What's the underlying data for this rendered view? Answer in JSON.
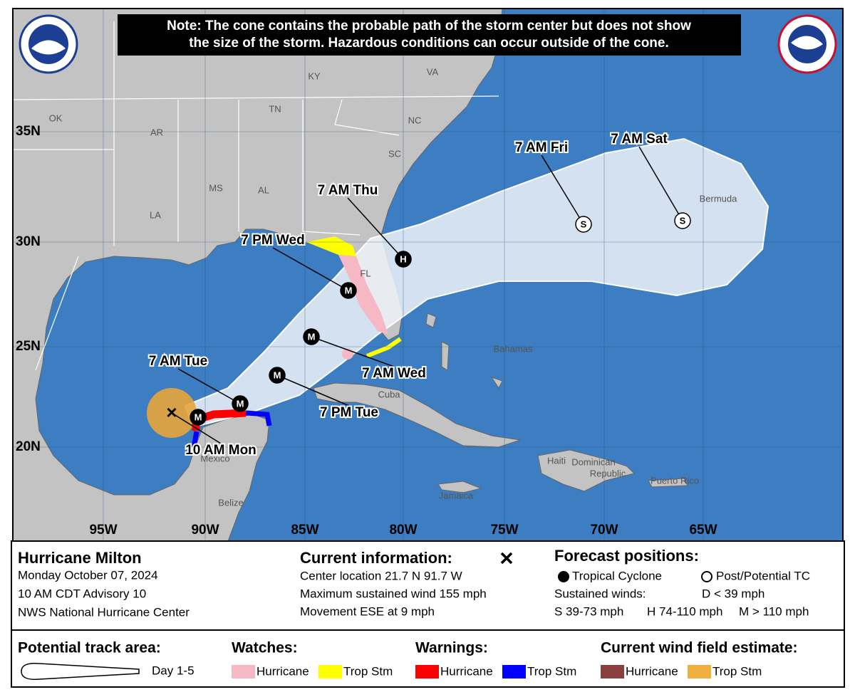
{
  "header": {
    "note": [
      "Note: The cone contains the probable path of the storm center but does not show",
      "the size of the storm. Hazardous conditions can occur outside of the cone."
    ]
  },
  "map": {
    "latitude_labels": [
      "35N",
      "30N",
      "25N",
      "20N"
    ],
    "longitude_labels": [
      "95W",
      "90W",
      "85W",
      "80W",
      "75W",
      "70W",
      "65W"
    ],
    "place_labels": [
      "OK",
      "AR",
      "TN",
      "KY",
      "VA",
      "NC",
      "SC",
      "MS",
      "AL",
      "LA",
      "FL",
      "Bermuda",
      "Bahamas",
      "Cuba",
      "Haiti",
      "Dominican",
      "Republic",
      "Puerto Rico",
      "Jamaica",
      "Mexico",
      "Belize"
    ],
    "forecast_points": [
      {
        "symbol": "×",
        "label": "10 AM Mon"
      },
      {
        "symbol": "M"
      },
      {
        "symbol": "M",
        "label": "7 AM Tue"
      },
      {
        "symbol": "M",
        "label": "7 PM Tue"
      },
      {
        "symbol": "M",
        "label": "7 AM Wed"
      },
      {
        "symbol": "M",
        "label": "7 PM Wed"
      },
      {
        "symbol": "H",
        "label": "7 AM Thu"
      },
      {
        "symbol": "S",
        "label": "7 AM Fri"
      },
      {
        "symbol": "S",
        "label": "7 AM Sat"
      }
    ]
  },
  "info": {
    "storm": {
      "title": "Hurricane Milton",
      "lines": [
        "Monday October 07, 2024",
        "10 AM CDT Advisory 10",
        "NWS National Hurricane Center"
      ]
    },
    "current": {
      "title": "Current information:",
      "lines": [
        "Center location 21.7 N 91.7 W",
        "Maximum sustained wind 155 mph",
        "Movement ESE at 9 mph"
      ]
    },
    "forecast": {
      "title": "Forecast positions:",
      "tropical_cyclone": "Tropical Cyclone",
      "post_potential": "Post/Potential TC",
      "sustained": "Sustained winds:",
      "d": "D < 39 mph",
      "s": "S 39-73 mph",
      "h": "H 74-110 mph",
      "m": "M > 110 mph"
    }
  },
  "legend": {
    "track_area": {
      "title": "Potential track area:",
      "label": "Day 1-5"
    },
    "watches": {
      "title": "Watches:",
      "items": [
        {
          "label": "Hurricane",
          "color": "#f7b8c6"
        },
        {
          "label": "Trop Stm",
          "color": "#ffff00"
        }
      ]
    },
    "warnings": {
      "title": "Warnings:",
      "items": [
        {
          "label": "Hurricane",
          "color": "#ff0000"
        },
        {
          "label": "Trop Stm",
          "color": "#0000ff"
        }
      ]
    },
    "wind_field": {
      "title": "Current wind field estimate:",
      "items": [
        {
          "label": "Hurricane",
          "color": "#8b4040"
        },
        {
          "label": "Trop Stm",
          "color": "#f0b040"
        }
      ]
    }
  }
}
